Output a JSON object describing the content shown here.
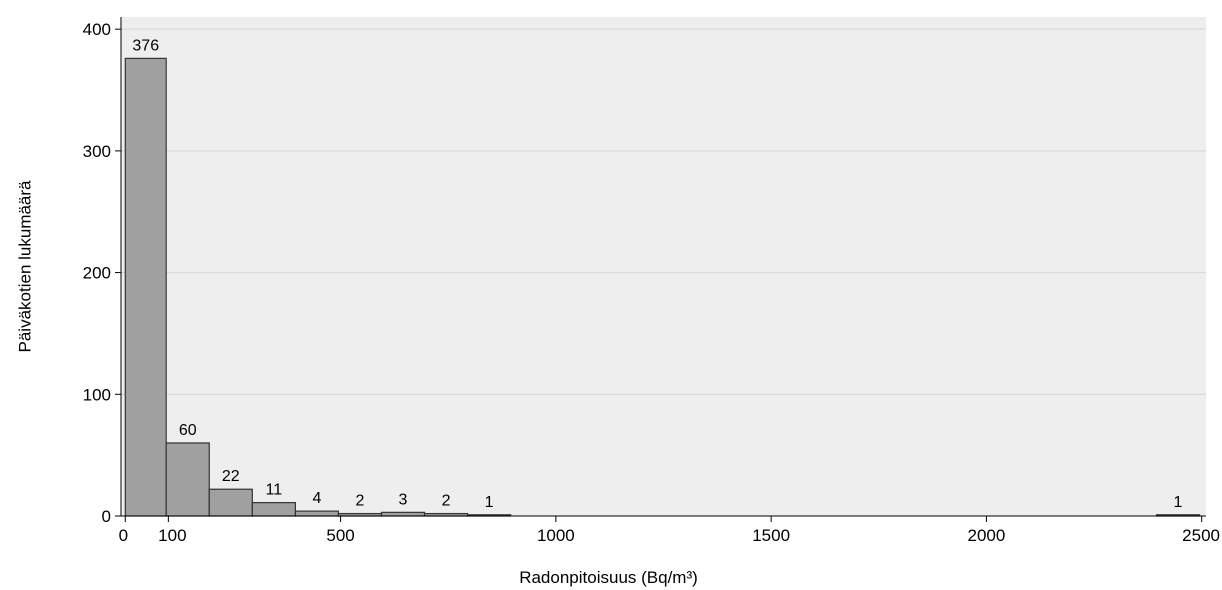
{
  "chart_data": {
    "type": "bar",
    "xlabel": "Radonpitoisuus (Bq/m³)",
    "ylabel": "Päiväkotien lukumäärä",
    "xlim": [
      -10,
      2510
    ],
    "ylim": [
      0,
      410
    ],
    "x_ticks": [
      0,
      100,
      500,
      1000,
      1500,
      2000,
      2500
    ],
    "y_ticks": [
      0,
      100,
      200,
      300,
      400
    ],
    "grid": true,
    "bins": [
      {
        "x0": 0,
        "x1": 95,
        "value": 376,
        "label": "376"
      },
      {
        "x0": 95,
        "x1": 195,
        "value": 60,
        "label": "60"
      },
      {
        "x0": 195,
        "x1": 295,
        "value": 22,
        "label": "22"
      },
      {
        "x0": 295,
        "x1": 395,
        "value": 11,
        "label": "11"
      },
      {
        "x0": 395,
        "x1": 495,
        "value": 4,
        "label": "4"
      },
      {
        "x0": 495,
        "x1": 595,
        "value": 2,
        "label": "2"
      },
      {
        "x0": 595,
        "x1": 695,
        "value": 3,
        "label": "3"
      },
      {
        "x0": 695,
        "x1": 795,
        "value": 2,
        "label": "2"
      },
      {
        "x0": 795,
        "x1": 895,
        "value": 1,
        "label": "1"
      },
      {
        "x0": 2395,
        "x1": 2495,
        "value": 1,
        "label": "1"
      }
    ],
    "colors": {
      "plot_background": "#eeeeee",
      "bar_fill": "#a0a0a0",
      "bar_stroke": "#333333",
      "grid": "#d4d4d4"
    }
  }
}
